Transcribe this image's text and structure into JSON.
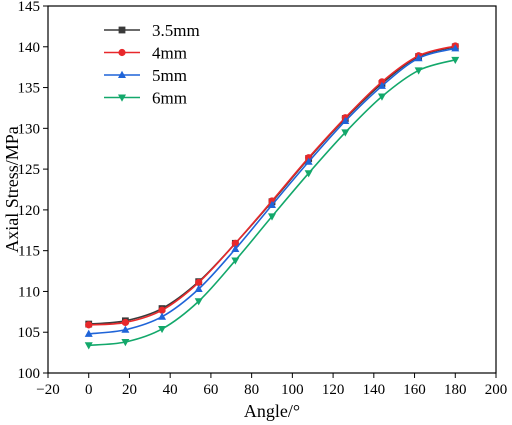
{
  "chart_data": {
    "type": "line",
    "title": "",
    "xlabel": "Angle/°",
    "ylabel": "Axial Stress/MPa",
    "xlim": [
      -20,
      200
    ],
    "ylim": [
      100,
      145
    ],
    "xticks": [
      -20,
      0,
      20,
      40,
      60,
      80,
      100,
      120,
      140,
      160,
      180,
      200
    ],
    "yticks": [
      100,
      105,
      110,
      115,
      120,
      125,
      130,
      135,
      140,
      145
    ],
    "grid": false,
    "legend_position": "top-left",
    "x": [
      0,
      18,
      36,
      54,
      72,
      90,
      108,
      126,
      144,
      162,
      180
    ],
    "series": [
      {
        "name": "3.5mm",
        "color": "#3a3a3a",
        "marker": "square",
        "values": [
          106.0,
          106.4,
          107.9,
          111.2,
          115.9,
          121.0,
          126.3,
          131.2,
          135.5,
          138.8,
          140.0
        ]
      },
      {
        "name": "4mm",
        "color": "#e8282b",
        "marker": "circle",
        "values": [
          105.9,
          106.2,
          107.7,
          111.1,
          115.9,
          121.1,
          126.4,
          131.3,
          135.7,
          138.9,
          140.1
        ]
      },
      {
        "name": "5mm",
        "color": "#1f64d8",
        "marker": "triangle-up",
        "values": [
          104.8,
          105.3,
          106.9,
          110.3,
          115.2,
          120.6,
          125.9,
          130.9,
          135.2,
          138.6,
          139.8
        ]
      },
      {
        "name": "6mm",
        "color": "#13a86b",
        "marker": "triangle-down",
        "values": [
          103.4,
          103.8,
          105.4,
          108.8,
          113.8,
          119.2,
          124.5,
          129.5,
          133.9,
          137.1,
          138.4
        ]
      }
    ]
  }
}
